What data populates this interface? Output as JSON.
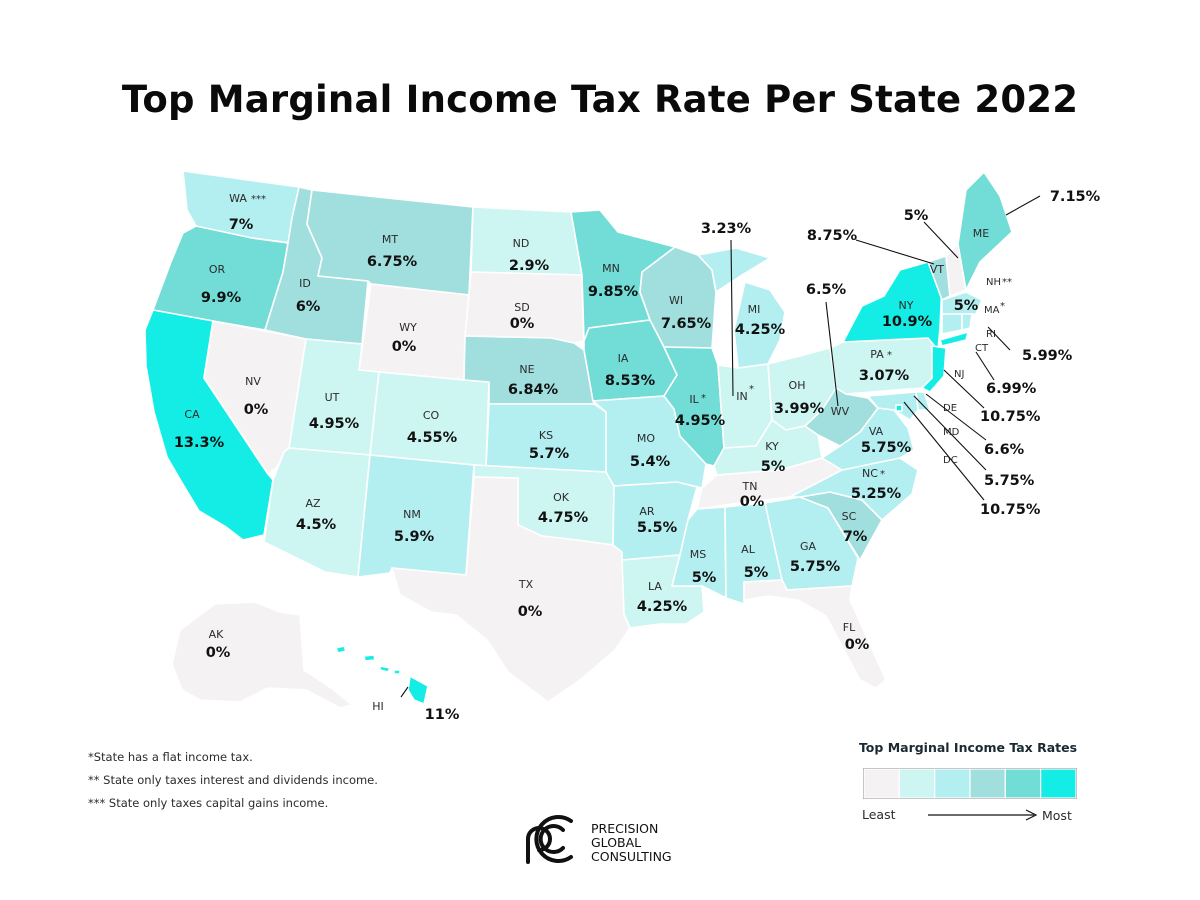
{
  "title": "Top Marginal Income Tax Rate Per State 2022",
  "palette": {
    "c0": "#f5f2f4",
    "c1": "#cdf5f2",
    "c2": "#b3eef0",
    "c3": "#a1dfdf",
    "c4": "#72dcd6",
    "c5": "#13ede5"
  },
  "states": {
    "WA": {
      "abbr": "WA",
      "rate": "7%",
      "note": "***",
      "tier": 2
    },
    "OR": {
      "abbr": "OR",
      "rate": "9.9%",
      "tier": 4
    },
    "CA": {
      "abbr": "CA",
      "rate": "13.3%",
      "tier": 5
    },
    "ID": {
      "abbr": "ID",
      "rate": "6%",
      "tier": 3
    },
    "NV": {
      "abbr": "NV",
      "rate": "0%",
      "tier": 0
    },
    "MT": {
      "abbr": "MT",
      "rate": "6.75%",
      "tier": 3
    },
    "WY": {
      "abbr": "WY",
      "rate": "0%",
      "tier": 0
    },
    "UT": {
      "abbr": "UT",
      "rate": "4.95%",
      "tier": 1
    },
    "AZ": {
      "abbr": "AZ",
      "rate": "4.5%",
      "tier": 1
    },
    "CO": {
      "abbr": "CO",
      "rate": "4.55%",
      "tier": 1
    },
    "NM": {
      "abbr": "NM",
      "rate": "5.9%",
      "tier": 2
    },
    "ND": {
      "abbr": "ND",
      "rate": "2.9%",
      "tier": 1
    },
    "SD": {
      "abbr": "SD",
      "rate": "0%",
      "tier": 0
    },
    "NE": {
      "abbr": "NE",
      "rate": "6.84%",
      "tier": 3
    },
    "KS": {
      "abbr": "KS",
      "rate": "5.7%",
      "tier": 2
    },
    "OK": {
      "abbr": "OK",
      "rate": "4.75%",
      "tier": 1
    },
    "TX": {
      "abbr": "TX",
      "rate": "0%",
      "tier": 0
    },
    "MN": {
      "abbr": "MN",
      "rate": "9.85%",
      "tier": 4
    },
    "IA": {
      "abbr": "IA",
      "rate": "8.53%",
      "tier": 4
    },
    "MO": {
      "abbr": "MO",
      "rate": "5.4%",
      "tier": 2
    },
    "AR": {
      "abbr": "AR",
      "rate": "5.5%",
      "tier": 2
    },
    "LA": {
      "abbr": "LA",
      "rate": "4.25%",
      "tier": 1
    },
    "WI": {
      "abbr": "WI",
      "rate": "7.65%",
      "tier": 3
    },
    "IL": {
      "abbr": "IL",
      "rate": "4.95%",
      "note": "*",
      "tier": 4
    },
    "MI": {
      "abbr": "MI",
      "rate": "4.25%",
      "tier": 2
    },
    "IN": {
      "abbr": "IN",
      "rate": "3.23%",
      "note": "*",
      "tier": 1
    },
    "OH": {
      "abbr": "OH",
      "rate": "3.99%",
      "tier": 1
    },
    "KY": {
      "abbr": "KY",
      "rate": "5%",
      "tier": 1
    },
    "TN": {
      "abbr": "TN",
      "rate": "0%",
      "tier": 0
    },
    "MS": {
      "abbr": "MS",
      "rate": "5%",
      "tier": 2
    },
    "AL": {
      "abbr": "AL",
      "rate": "5%",
      "tier": 2
    },
    "GA": {
      "abbr": "GA",
      "rate": "5.75%",
      "tier": 2
    },
    "FL": {
      "abbr": "FL",
      "rate": "0%",
      "tier": 0
    },
    "SC": {
      "abbr": "SC",
      "rate": "7%",
      "tier": 3
    },
    "NC": {
      "abbr": "NC",
      "rate": "5.25%",
      "note": "*",
      "tier": 2
    },
    "VA": {
      "abbr": "VA",
      "rate": "5.75%",
      "tier": 2
    },
    "WV": {
      "abbr": "WV",
      "rate": "6.5%",
      "tier": 3
    },
    "PA": {
      "abbr": "PA",
      "rate": "3.07%",
      "note": "*",
      "tier": 1
    },
    "NY": {
      "abbr": "NY",
      "rate": "10.9%",
      "tier": 5
    },
    "NJ": {
      "abbr": "NJ",
      "rate": "10.75%",
      "tier": 5
    },
    "DE": {
      "abbr": "DE",
      "rate": "6.6%",
      "tier": 2
    },
    "MD": {
      "abbr": "MD",
      "rate": "5.75%",
      "tier": 2
    },
    "DC": {
      "abbr": "DC",
      "rate": "10.75%",
      "tier": 5
    },
    "VT": {
      "abbr": "VT",
      "rate": "8.75%",
      "tier": 3
    },
    "NH": {
      "abbr": "NH",
      "rate": "5%",
      "note": "**",
      "tier": 0
    },
    "ME": {
      "abbr": "ME",
      "rate": "7.15%",
      "tier": 4
    },
    "MA": {
      "abbr": "MA",
      "rate": "5%",
      "note": "*",
      "tier": 2
    },
    "RI": {
      "abbr": "RI",
      "rate": "5.99%",
      "tier": 2
    },
    "CT": {
      "abbr": "CT",
      "rate": "6.99%",
      "tier": 2
    },
    "AK": {
      "abbr": "AK",
      "rate": "0%",
      "tier": 0
    },
    "HI": {
      "abbr": "HI",
      "rate": "11%",
      "tier": 5
    }
  },
  "footnotes": [
    "*State has a flat income tax.",
    "** State only taxes interest and dividends income.",
    "*** State only taxes capital gains income."
  ],
  "legend": {
    "title": "Top Marginal Income Tax Rates",
    "least": "Least",
    "most": "Most"
  },
  "logo": {
    "line1": "PRECISION",
    "line2": "GLOBAL",
    "line3": "CONSULTING"
  }
}
